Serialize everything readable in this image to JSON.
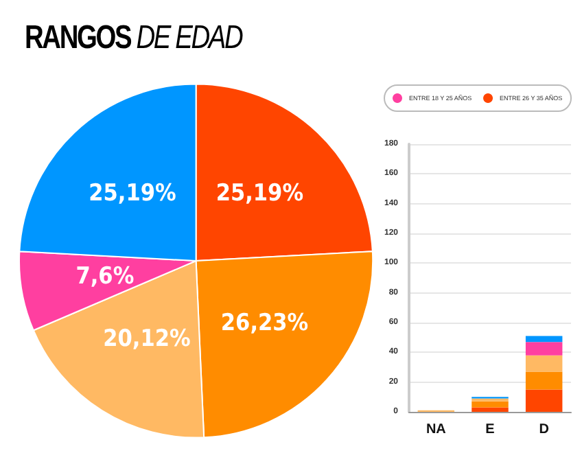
{
  "chart_data": [
    {
      "type": "pie",
      "title": "RANGOS DE EDAD",
      "categories": [
        null,
        null,
        null,
        null,
        null
      ],
      "values": [
        25.19,
        26.23,
        20.12,
        7.6,
        25.19
      ],
      "colors": [
        "#ff4500",
        "#ff8c00",
        "#ffb963",
        "#ff3fa0",
        "#0096ff"
      ],
      "value_labels": [
        "25,19%",
        "26,23%",
        "20,12%",
        "7,6%",
        "25,19%"
      ]
    },
    {
      "type": "bar",
      "stacked": true,
      "categories": [
        "NA",
        "E",
        "D"
      ],
      "ylim": [
        0,
        180
      ],
      "yticks": [
        0,
        20,
        40,
        60,
        80,
        100,
        120,
        140,
        160,
        180
      ],
      "grid": "y",
      "legend": "top",
      "series": [
        {
          "name": "ENTRE 26 Y 35 AÑOS",
          "color": "#ff4500",
          "values": [
            0,
            3,
            15
          ]
        },
        {
          "color": "#ff8c00",
          "values": [
            0,
            4,
            12
          ]
        },
        {
          "color": "#ffb963",
          "values": [
            1,
            2,
            11
          ]
        },
        {
          "name": "ENTRE 18 Y 25 AÑOS",
          "color": "#ff3fa0",
          "values": [
            0,
            0,
            9
          ]
        },
        {
          "color": "#0096ff",
          "values": [
            0,
            1,
            4
          ]
        }
      ]
    }
  ]
}
